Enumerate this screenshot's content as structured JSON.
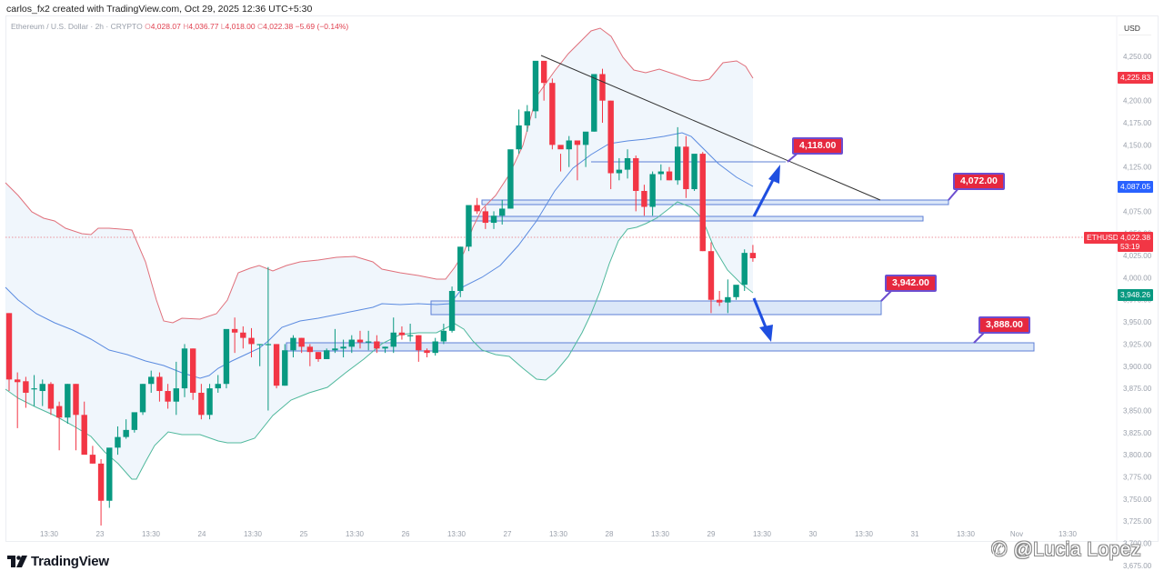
{
  "header": {
    "credit": "carlos_fx2 created with TradingView.com, Oct 29, 2025 12:36 UTC+5:30"
  },
  "legend": {
    "symbol_desc": "Ethereum / U.S. Dollar · 2h · CRYPTO",
    "open_label": "O",
    "open": "4,028.07",
    "high_label": "H",
    "high": "4,036.77",
    "low_label": "L",
    "low": "4,018.00",
    "close_label": "C",
    "close": "4,022.38",
    "change": "−5.69 (−0.14%)"
  },
  "price_axis": {
    "currency": "USD",
    "ticks": [
      "4,250.00",
      "4,225.00",
      "4,200.00",
      "4,175.00",
      "4,150.00",
      "4,125.00",
      "4,100.00",
      "4,075.00",
      "4,050.00",
      "4,025.00",
      "4,000.00",
      "3,975.00",
      "3,950.00",
      "3,925.00",
      "3,900.00",
      "3,875.00",
      "3,850.00",
      "3,825.00",
      "3,800.00",
      "3,775.00",
      "3,750.00",
      "3,725.00",
      "3,700.00",
      "3,675.00"
    ],
    "tags": {
      "upper_band": "4,225.83",
      "middle_band": "4,087.05",
      "symbol": "ETHUSD",
      "last_price": "4,022.38",
      "countdown": "53:19",
      "lower_band": "3,948.26"
    }
  },
  "time_axis": {
    "ticks": [
      "13:30",
      "23",
      "13:30",
      "24",
      "13:30",
      "25",
      "13:30",
      "26",
      "13:30",
      "27",
      "13:30",
      "28",
      "13:30",
      "29",
      "13:30",
      "30",
      "13:30",
      "31",
      "13:30",
      "Nov",
      "13:30"
    ]
  },
  "callouts": [
    "4,118.00",
    "4,072.00",
    "3,942.00",
    "3,888.00"
  ],
  "footer": {
    "brand": "TradingView",
    "watermark": "@Lucia Lopez"
  },
  "colors": {
    "up": "#089981",
    "down": "#f23645",
    "band_upper": "#e0707b",
    "band_middle": "#5b8be0",
    "band_lower": "#4fb89c",
    "band_fill": "#eef5fc",
    "zone_fill": "#dbe7f8",
    "zone_stroke": "#5d7fd6",
    "arrow": "#1f4fe0",
    "trendline": "#333333"
  },
  "chart_data": {
    "type": "candlestick",
    "title": "Ethereum / U.S. Dollar · 2h · CRYPTO",
    "symbol": "ETHUSD",
    "timeframe": "2h",
    "ohlc_last": {
      "open": 4028.07,
      "high": 4036.77,
      "low": 4018.0,
      "close": 4022.38,
      "change": -5.69,
      "change_pct": -0.14
    },
    "ylabel": "USD",
    "ylim": [
      3665,
      4270
    ],
    "x_ticks": [
      "13:30",
      "23",
      "13:30",
      "24",
      "13:30",
      "25",
      "13:30",
      "26",
      "13:30",
      "27",
      "13:30",
      "28",
      "13:30",
      "29",
      "13:30",
      "30",
      "13:30",
      "31",
      "13:30",
      "Nov",
      "13:30"
    ],
    "candles_ohlc": [
      [
        3960,
        3960,
        3872,
        3885
      ],
      [
        3885,
        3893,
        3830,
        3882
      ],
      [
        3883,
        3888,
        3853,
        3870
      ],
      [
        3875,
        3890,
        3855,
        3875
      ],
      [
        3872,
        3885,
        3855,
        3880
      ],
      [
        3880,
        3882,
        3845,
        3852
      ],
      [
        3855,
        3860,
        3805,
        3842
      ],
      [
        3842,
        3880,
        3835,
        3880
      ],
      [
        3880,
        3880,
        3805,
        3845
      ],
      [
        3845,
        3860,
        3830,
        3800
      ],
      [
        3800,
        3810,
        3790,
        3790
      ],
      [
        3790,
        3795,
        3720,
        3748
      ],
      [
        3748,
        3790,
        3740,
        3808
      ],
      [
        3808,
        3832,
        3800,
        3820
      ],
      [
        3820,
        3840,
        3818,
        3828
      ],
      [
        3828,
        3845,
        3825,
        3848
      ],
      [
        3848,
        3880,
        3845,
        3880
      ],
      [
        3880,
        3895,
        3870,
        3888
      ],
      [
        3888,
        3893,
        3860,
        3872
      ],
      [
        3872,
        3880,
        3852,
        3860
      ],
      [
        3860,
        3905,
        3845,
        3875
      ],
      [
        3875,
        3925,
        3865,
        3920
      ],
      [
        3920,
        3920,
        3862,
        3870
      ],
      [
        3870,
        3880,
        3840,
        3845
      ],
      [
        3845,
        3880,
        3840,
        3875
      ],
      [
        3875,
        3890,
        3870,
        3880
      ],
      [
        3880,
        3940,
        3875,
        3942
      ],
      [
        3942,
        3955,
        3915,
        3938
      ],
      [
        3938,
        3945,
        3920,
        3932
      ],
      [
        3932,
        3943,
        3910,
        3925
      ],
      [
        3925,
        3925,
        3900,
        3925
      ],
      [
        3925,
        4012,
        3850,
        3925
      ],
      [
        3925,
        3925,
        3875,
        3878
      ],
      [
        3878,
        3925,
        3878,
        3918
      ],
      [
        3918,
        3935,
        3910,
        3932
      ],
      [
        3932,
        3932,
        3915,
        3922
      ],
      [
        3922,
        3925,
        3900,
        3916
      ],
      [
        3916,
        3916,
        3905,
        3908
      ],
      [
        3908,
        3920,
        3908,
        3918
      ],
      [
        3918,
        3942,
        3915,
        3920
      ],
      [
        3920,
        3930,
        3910,
        3922
      ],
      [
        3922,
        3935,
        3915,
        3930
      ],
      [
        3930,
        3940,
        3920,
        3927
      ],
      [
        3927,
        3940,
        3918,
        3928
      ],
      [
        3928,
        3935,
        3915,
        3920
      ],
      [
        3920,
        3922,
        3915,
        3922
      ],
      [
        3922,
        3955,
        3915,
        3938
      ],
      [
        3938,
        3945,
        3930,
        3935
      ],
      [
        3935,
        3948,
        3928,
        3935
      ],
      [
        3935,
        3935,
        3905,
        3918
      ],
      [
        3918,
        3920,
        3910,
        3915
      ],
      [
        3915,
        3932,
        3912,
        3928
      ],
      [
        3928,
        3948,
        3925,
        3940
      ],
      [
        3940,
        3990,
        3938,
        3985
      ],
      [
        3985,
        4035,
        3978,
        4035
      ],
      [
        4035,
        4080,
        4030,
        4082
      ],
      [
        4082,
        4090,
        4072,
        4075
      ],
      [
        4075,
        4080,
        4055,
        4062
      ],
      [
        4062,
        4075,
        4055,
        4070
      ],
      [
        4070,
        4088,
        4060,
        4078
      ],
      [
        4078,
        4140,
        4078,
        4145
      ],
      [
        4145,
        4190,
        4140,
        4172
      ],
      [
        4172,
        4195,
        4165,
        4188
      ],
      [
        4188,
        4215,
        4180,
        4245
      ],
      [
        4245,
        4240,
        4200,
        4220
      ],
      [
        4220,
        4225,
        4145,
        4150
      ],
      [
        4150,
        4140,
        4120,
        4145
      ],
      [
        4145,
        4160,
        4125,
        4155
      ],
      [
        4155,
        4155,
        4110,
        4150
      ],
      [
        4150,
        4160,
        4125,
        4165
      ],
      [
        4165,
        4225,
        4165,
        4230
      ],
      [
        4230,
        4236,
        4175,
        4200
      ],
      [
        4200,
        4200,
        4100,
        4118
      ],
      [
        4118,
        4135,
        4110,
        4122
      ],
      [
        4122,
        4145,
        4112,
        4135
      ],
      [
        4135,
        4138,
        4075,
        4098
      ],
      [
        4098,
        4105,
        4070,
        4080
      ],
      [
        4080,
        4120,
        4070,
        4117
      ],
      [
        4117,
        4128,
        4110,
        4120
      ],
      [
        4120,
        4125,
        4110,
        4110
      ],
      [
        4110,
        4170,
        4105,
        4148
      ],
      [
        4148,
        4160,
        4090,
        4100
      ],
      [
        4100,
        4135,
        4098,
        4140
      ],
      [
        4140,
        4142,
        4030,
        4030
      ],
      [
        4030,
        4040,
        3960,
        3975
      ],
      [
        3975,
        3985,
        3968,
        3972
      ],
      [
        3972,
        3998,
        3960,
        3978
      ],
      [
        3978,
        3990,
        3975,
        3992
      ],
      [
        3992,
        4032,
        3985,
        4028
      ],
      [
        4028,
        4037,
        4018,
        4022
      ]
    ],
    "bollinger": {
      "upper_last": 4225.83,
      "middle_last": 4087.05,
      "lower_last": 3948.26
    },
    "annotations": [
      {
        "type": "callout",
        "text": "4,118.00",
        "price": 4118
      },
      {
        "type": "callout",
        "text": "4,072.00",
        "price": 4072
      },
      {
        "type": "callout",
        "text": "3,942.00",
        "price": 3942
      },
      {
        "type": "callout",
        "text": "3,888.00",
        "price": 3888
      },
      {
        "type": "trendline",
        "from_price": 4253,
        "to_price": 4072,
        "desc": "descending resistance from peak"
      },
      {
        "type": "zone",
        "range": [
          4067,
          4072
        ]
      },
      {
        "type": "zone",
        "range": [
          4045,
          4051
        ]
      },
      {
        "type": "zone",
        "range": [
          3925,
          3940
        ]
      },
      {
        "type": "zone",
        "range": [
          3878,
          3886
        ]
      },
      {
        "type": "arrow",
        "direction": "up",
        "target": 4118
      },
      {
        "type": "arrow",
        "direction": "down",
        "target": 3888
      }
    ],
    "grid": false,
    "legend_position": "top-left"
  }
}
